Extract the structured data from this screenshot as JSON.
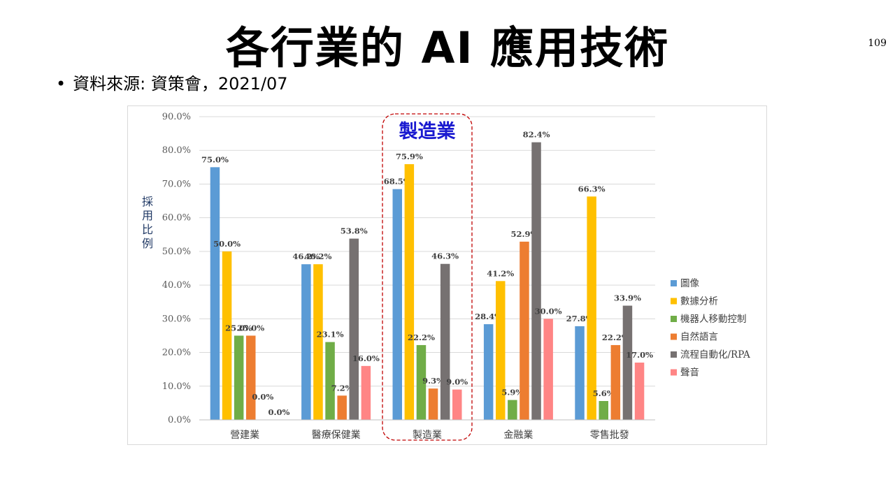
{
  "slide": {
    "title": "各行業的 AI 應用技術",
    "page_number": "109",
    "bullet": "•",
    "source": "資料來源: 資策會，2021/07"
  },
  "chart_data": {
    "type": "bar",
    "categories": [
      "營建業",
      "醫療保健業",
      "製造業",
      "金融業",
      "零售批發"
    ],
    "series": [
      {
        "name": "圖像",
        "color": "#5b9bd5",
        "values": [
          75.0,
          46.2,
          68.5,
          28.4,
          27.8
        ]
      },
      {
        "name": "數據分析",
        "color": "#ffc000",
        "values": [
          50.0,
          46.2,
          75.9,
          41.2,
          66.3
        ]
      },
      {
        "name": "機器人移動控制",
        "color": "#70ad47",
        "values": [
          25.0,
          23.1,
          22.2,
          5.9,
          5.6
        ]
      },
      {
        "name": "自然語言",
        "color": "#ed7d31",
        "values": [
          25.0,
          7.2,
          9.3,
          52.9,
          22.2
        ]
      },
      {
        "name": "流程自動化/RPA",
        "color": "#767171",
        "values": [
          0.0,
          53.8,
          46.3,
          82.4,
          33.9
        ]
      },
      {
        "name": "聲音",
        "color": "#ff8585",
        "values": [
          0.0,
          16.0,
          9.0,
          30.0,
          17.0
        ]
      }
    ],
    "ylabel": "採用比例",
    "ylim": [
      0,
      90
    ],
    "yticks": [
      "0.0%",
      "10.0%",
      "20.0%",
      "30.0%",
      "40.0%",
      "50.0%",
      "60.0%",
      "70.0%",
      "80.0%",
      "90.0%"
    ],
    "grid": true,
    "legend_position": "right",
    "highlight": {
      "category": "製造業",
      "label": "製造業",
      "border_color": "#c00000"
    }
  }
}
